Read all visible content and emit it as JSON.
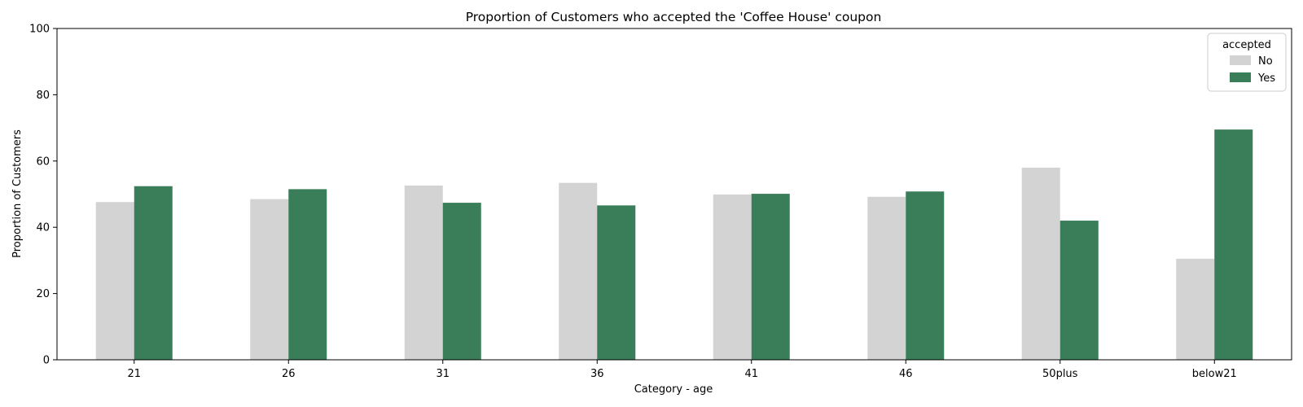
{
  "chart_data": {
    "type": "bar",
    "title": "Proportion of Customers who accepted the 'Coffee House' coupon",
    "xlabel": "Category - age",
    "ylabel": "Proportion of Customers",
    "ylim": [
      0,
      100
    ],
    "yticks": [
      "0",
      "20",
      "40",
      "60",
      "80",
      "100"
    ],
    "categories": [
      "21",
      "26",
      "31",
      "36",
      "41",
      "46",
      "50plus",
      "below21"
    ],
    "series": [
      {
        "name": "No",
        "color": "#d3d3d3",
        "values": [
          47.6,
          48.5,
          52.6,
          53.4,
          49.9,
          49.2,
          58.0,
          30.5
        ]
      },
      {
        "name": "Yes",
        "color": "#3a7d59",
        "values": [
          52.4,
          51.5,
          47.4,
          46.6,
          50.1,
          50.8,
          42.0,
          69.5
        ]
      }
    ],
    "legend_title": "accepted",
    "legend_position": "top-right",
    "grid": false
  }
}
